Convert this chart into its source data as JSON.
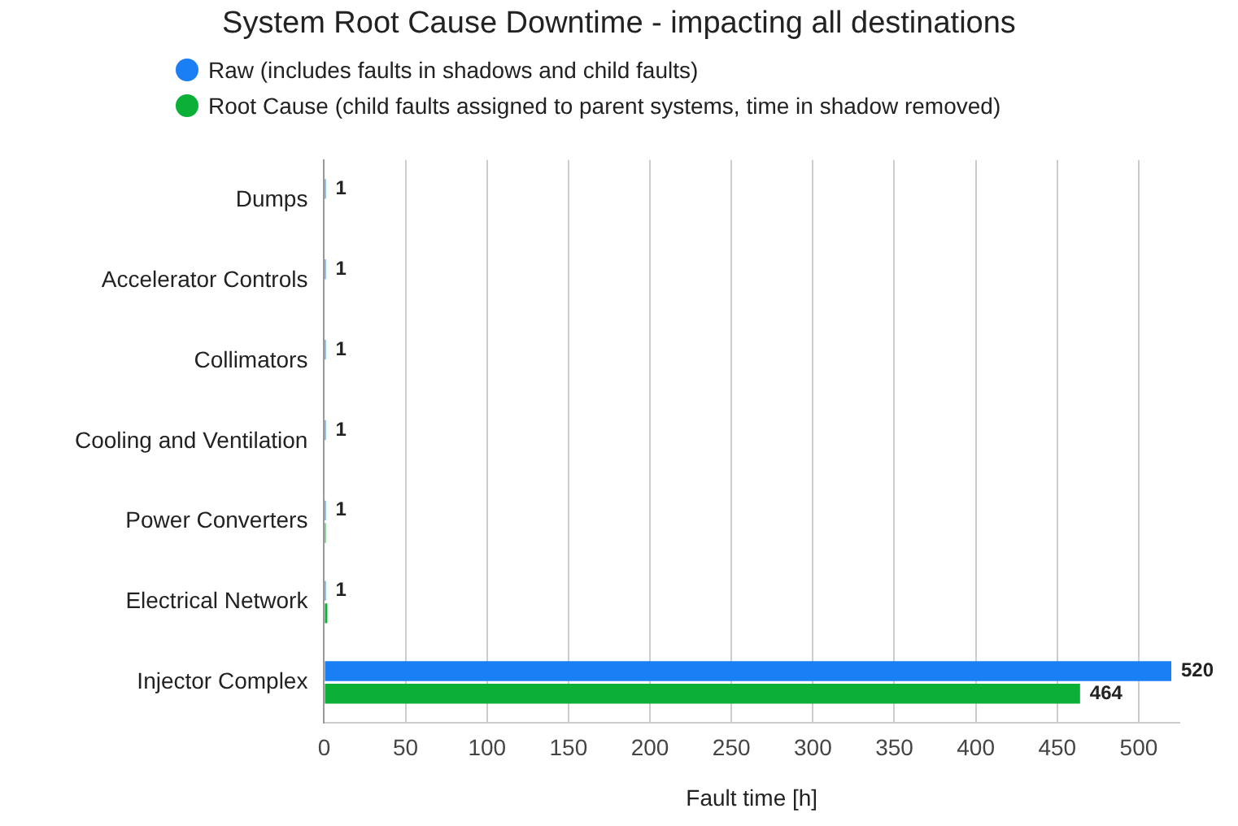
{
  "chart_data": {
    "type": "bar",
    "orientation": "horizontal",
    "title": "System Root Cause Downtime - impacting all destinations",
    "xlabel": "Fault time [h]",
    "categories": [
      "Dumps",
      "Accelerator Controls",
      "Collimators",
      "Cooling and Ventilation",
      "Power Converters",
      "Electrical Network",
      "Injector Complex"
    ],
    "series": [
      {
        "name": "Raw (includes faults in shadows and child faults)",
        "color": "#1a7ff5",
        "values": [
          1,
          1,
          1,
          1,
          1,
          1,
          520
        ],
        "value_labels": [
          "1",
          "1",
          "1",
          "1",
          "1",
          "1",
          "520"
        ]
      },
      {
        "name": "Root Cause (child faults assigned to parent systems, time in shadow removed)",
        "color": "#0bb036",
        "values": [
          0,
          0,
          0,
          0,
          1,
          2,
          464
        ],
        "value_labels": [
          null,
          null,
          null,
          null,
          null,
          null,
          "464"
        ]
      }
    ],
    "xlim": [
      0,
      525
    ],
    "xticks": [
      0,
      50,
      100,
      150,
      200,
      250,
      300,
      350,
      400,
      450,
      500
    ],
    "grid": "x",
    "legend": "top left"
  }
}
